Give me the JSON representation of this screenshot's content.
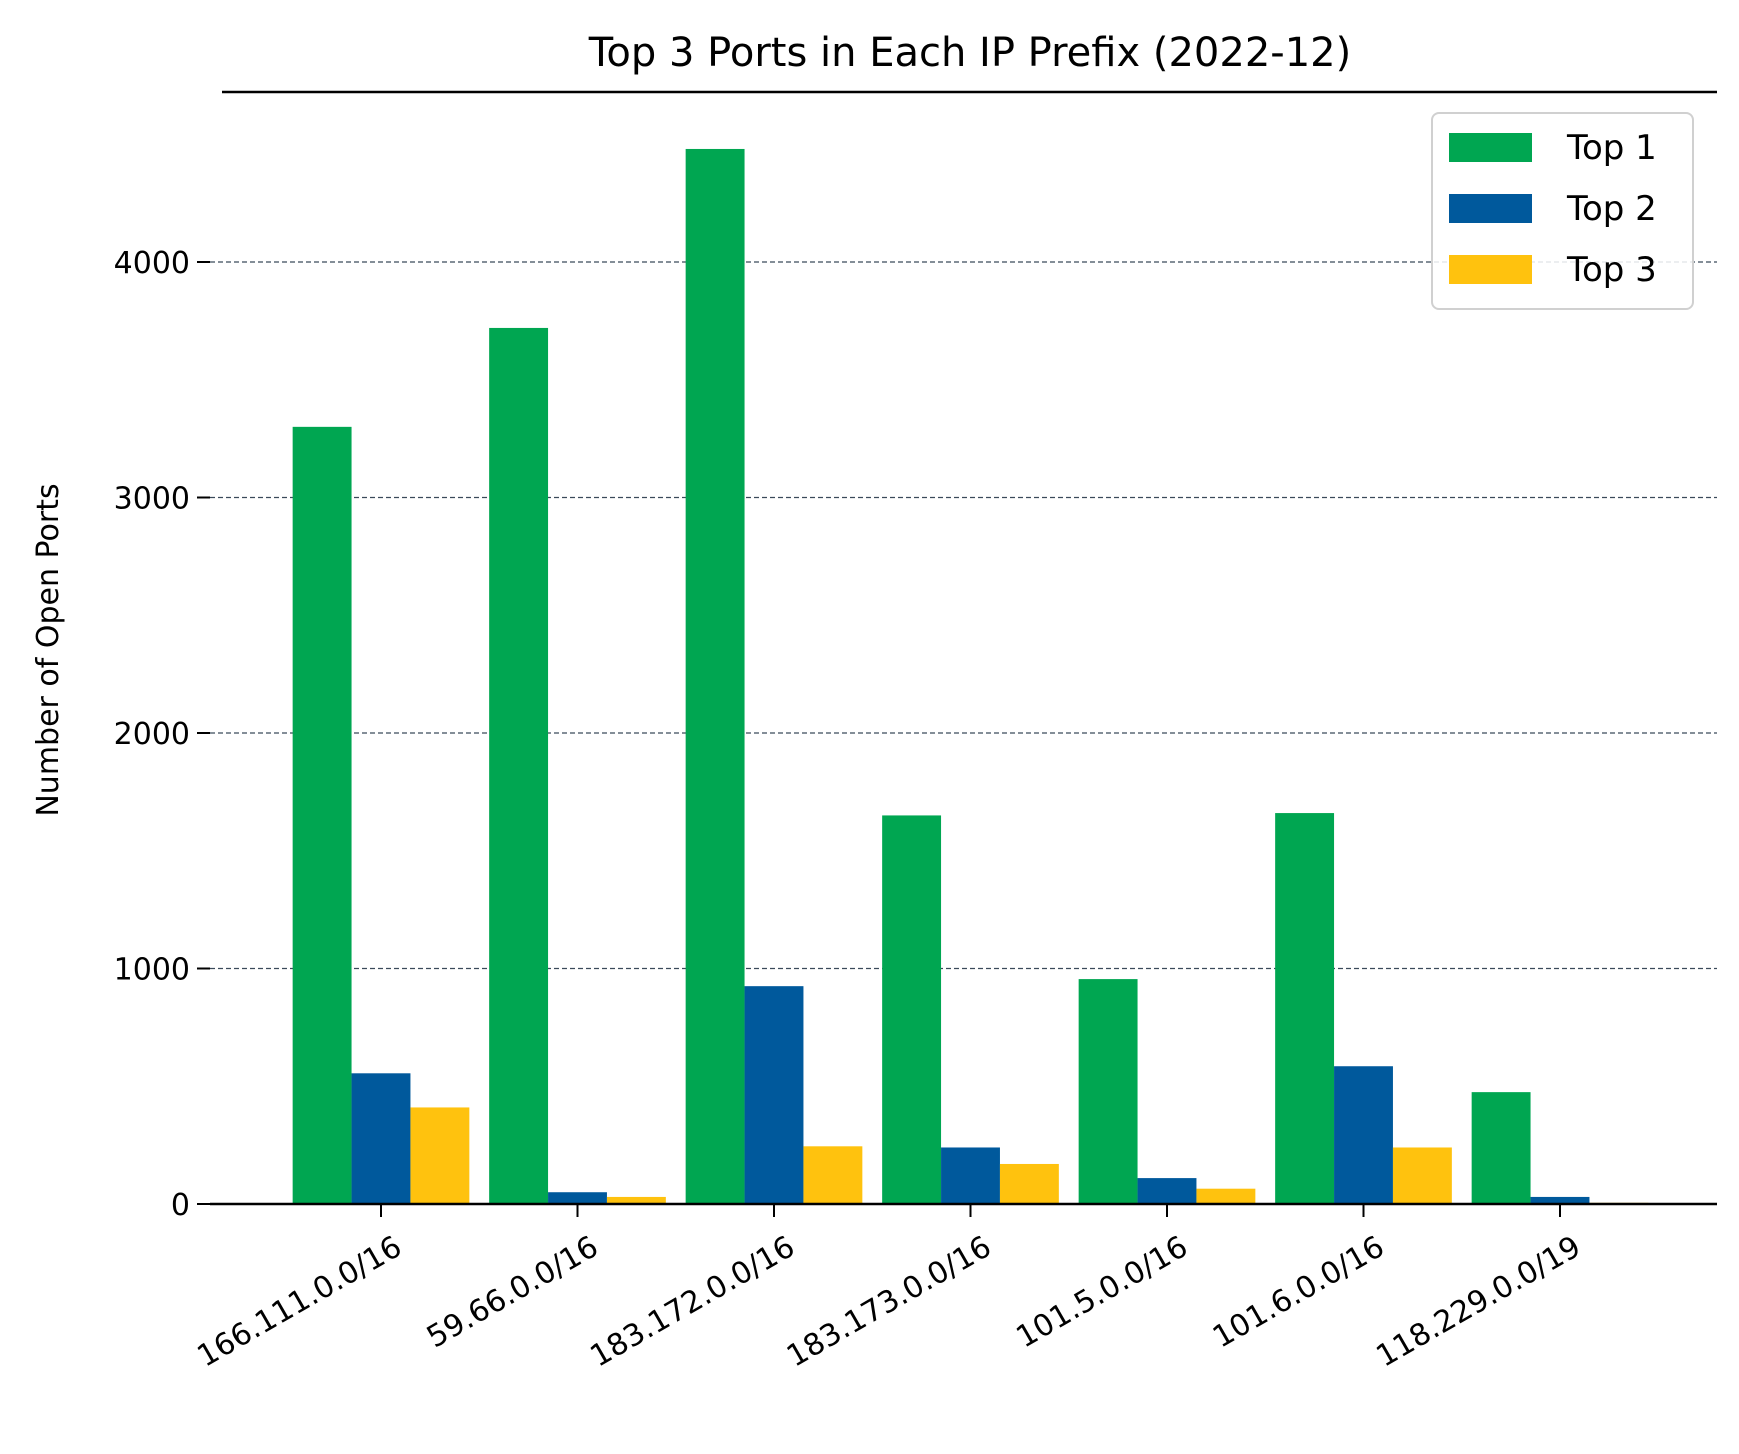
{
  "chart_data": {
    "type": "bar",
    "title": "Top 3 Ports in Each IP Prefix (2022-12)",
    "xlabel": "",
    "ylabel": "Number of Open Ports",
    "categories": [
      "166.111.0.0/16",
      "59.66.0.0/16",
      "183.172.0.0/16",
      "183.173.0.0/16",
      "101.5.0.0/16",
      "101.6.0.0/16",
      "118.229.0.0/19"
    ],
    "series": [
      {
        "name": "Top 1",
        "color": "#00a651",
        "values": [
          3300,
          3720,
          4480,
          1650,
          955,
          1660,
          475
        ]
      },
      {
        "name": "Top 2",
        "color": "#00599c",
        "values": [
          555,
          50,
          925,
          240,
          110,
          585,
          30
        ]
      },
      {
        "name": "Top 3",
        "color": "#ffc20e",
        "values": [
          410,
          30,
          245,
          170,
          65,
          240,
          5
        ]
      }
    ],
    "yticks": [
      0,
      1000,
      2000,
      3000,
      4000
    ],
    "ylim": [
      0,
      4700
    ],
    "grid": "horizontal dashed",
    "legend_position": "top-right"
  }
}
